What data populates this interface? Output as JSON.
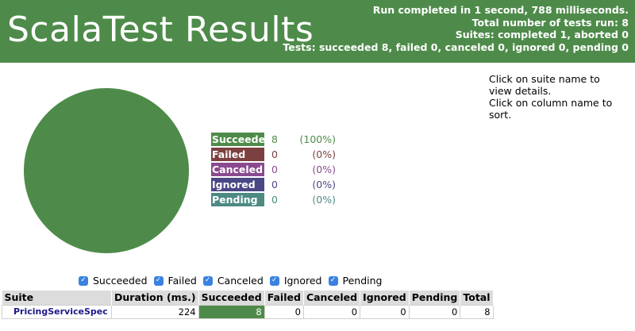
{
  "header": {
    "title": "ScalaTest Results",
    "summary": [
      "Run completed in 1 second, 788 milliseconds.",
      "Total number of tests run: 8",
      "Suites: completed 1, aborted 0",
      "Tests: succeeded 8, failed 0, canceled 0, ignored 0, pending 0"
    ]
  },
  "help": {
    "line1": "Click on suite name to view details.",
    "line2": "Click on column name to sort."
  },
  "colors": {
    "succeeded": "#4e8b4a",
    "failed": "#7c4040",
    "canceled": "#8a4a8f",
    "ignored": "#4a4785",
    "pending": "#4d8a83"
  },
  "legend": [
    {
      "label": "Succeeded",
      "count": "8",
      "percent": "(100%)",
      "color": "#4e8b4a",
      "text_color": "#4e8b4a"
    },
    {
      "label": "Failed",
      "count": "0",
      "percent": "(0%)",
      "color": "#7c4040",
      "text_color": "#7c4040"
    },
    {
      "label": "Canceled",
      "count": "0",
      "percent": "(0%)",
      "color": "#8a4a8f",
      "text_color": "#8a4a8f"
    },
    {
      "label": "Ignored",
      "count": "0",
      "percent": "(0%)",
      "color": "#4a4785",
      "text_color": "#4a4785"
    },
    {
      "label": "Pending",
      "count": "0",
      "percent": "(0%)",
      "color": "#4d8a83",
      "text_color": "#4d8a83"
    }
  ],
  "chart_data": {
    "type": "pie",
    "categories": [
      "Succeeded",
      "Failed",
      "Canceled",
      "Ignored",
      "Pending"
    ],
    "values": [
      8,
      0,
      0,
      0,
      0
    ],
    "colors": [
      "#4e8b4a",
      "#7c4040",
      "#8a4a8f",
      "#4a4785",
      "#4d8a83"
    ]
  },
  "filters": [
    {
      "label": "Succeeded",
      "checked": true
    },
    {
      "label": "Failed",
      "checked": true
    },
    {
      "label": "Canceled",
      "checked": true
    },
    {
      "label": "Ignored",
      "checked": true
    },
    {
      "label": "Pending",
      "checked": true
    }
  ],
  "table": {
    "headers": [
      "Suite",
      "Duration (ms.)",
      "Succeeded",
      "Failed",
      "Canceled",
      "Ignored",
      "Pending",
      "Total"
    ],
    "rows": [
      {
        "suite": "PricingServiceSpec",
        "duration": "224",
        "succeeded": "8",
        "failed": "0",
        "canceled": "0",
        "ignored": "0",
        "pending": "0",
        "total": "8"
      }
    ]
  }
}
